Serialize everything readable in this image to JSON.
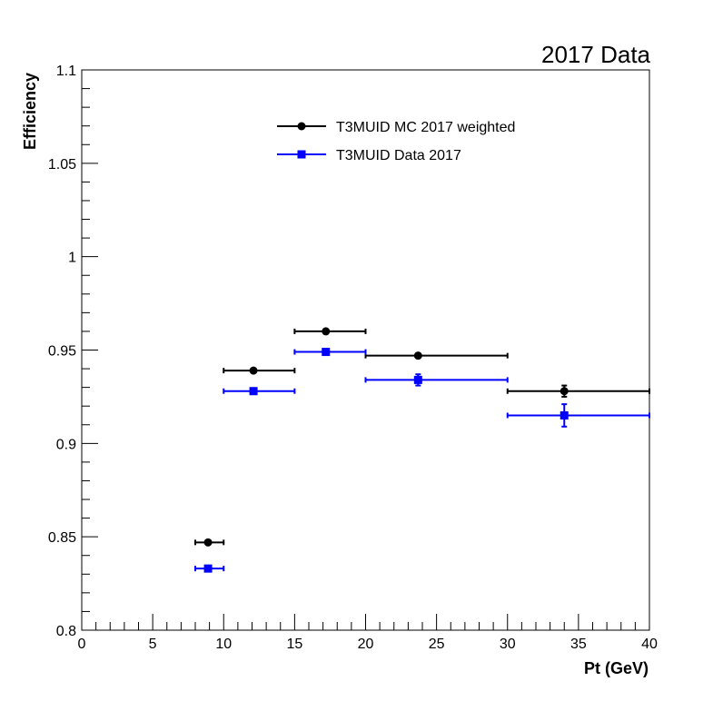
{
  "chart_data": {
    "type": "scatter",
    "title": "2017 Data",
    "xlabel": "Pt (GeV)",
    "ylabel": "Efficiency",
    "xlim": [
      0,
      40
    ],
    "ylim": [
      0.8,
      1.1
    ],
    "x_ticks": [
      "0",
      "5",
      "10",
      "15",
      "20",
      "25",
      "30",
      "35",
      "40"
    ],
    "y_ticks": [
      "0.8",
      "0.85",
      "0.9",
      "0.95",
      "1",
      "1.05",
      "1.1"
    ],
    "grid": false,
    "legend_position": "top-center",
    "series": [
      {
        "name": "T3MUID MC 2017 weighted",
        "color": "#000000",
        "marker": "circle",
        "points": [
          {
            "x": 8.9,
            "y": 0.847,
            "xlo": 8,
            "xhi": 10,
            "yerr": 0.001
          },
          {
            "x": 12.1,
            "y": 0.939,
            "xlo": 10,
            "xhi": 15,
            "yerr": 0.001
          },
          {
            "x": 17.2,
            "y": 0.96,
            "xlo": 15,
            "xhi": 20,
            "yerr": 0.001
          },
          {
            "x": 23.7,
            "y": 0.947,
            "xlo": 20,
            "xhi": 30,
            "yerr": 0.001
          },
          {
            "x": 34.0,
            "y": 0.928,
            "xlo": 30,
            "xhi": 40,
            "yerr": 0.003
          }
        ]
      },
      {
        "name": "T3MUID Data 2017",
        "color": "#0000ff",
        "marker": "square",
        "points": [
          {
            "x": 8.9,
            "y": 0.833,
            "xlo": 8,
            "xhi": 10,
            "yerr": 0.001
          },
          {
            "x": 12.1,
            "y": 0.928,
            "xlo": 10,
            "xhi": 15,
            "yerr": 0.001
          },
          {
            "x": 17.2,
            "y": 0.949,
            "xlo": 15,
            "xhi": 20,
            "yerr": 0.001
          },
          {
            "x": 23.7,
            "y": 0.934,
            "xlo": 20,
            "xhi": 30,
            "yerr": 0.003
          },
          {
            "x": 34.0,
            "y": 0.915,
            "xlo": 30,
            "xhi": 40,
            "yerr": 0.006
          }
        ]
      }
    ]
  }
}
